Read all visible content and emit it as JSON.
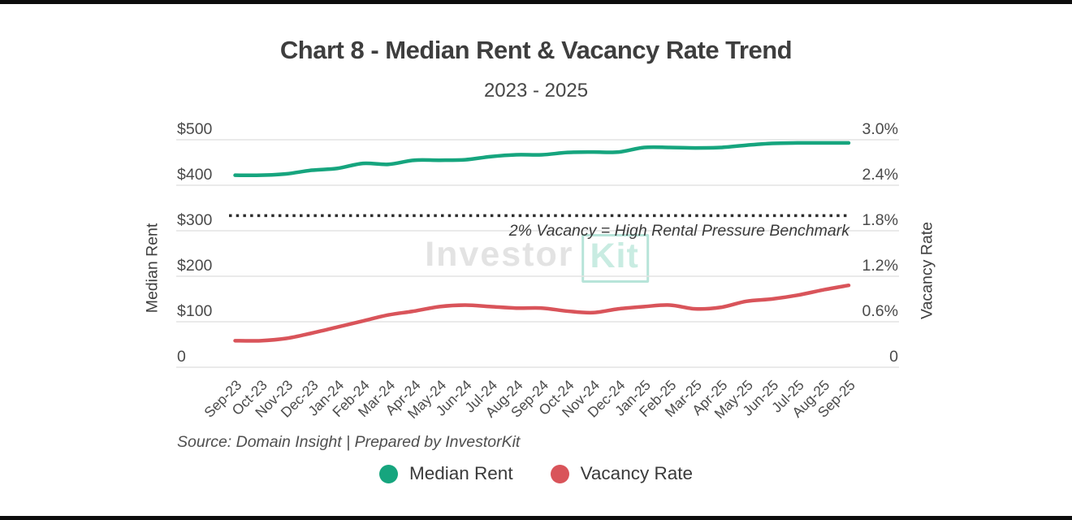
{
  "source_note": "Source: Domain Insight | Prepared by InvestorKit",
  "watermark": {
    "text_primary": "Investor",
    "text_accent": "Kit"
  },
  "chart_data": {
    "type": "line",
    "title": "Chart 8 - Median Rent & Vacancy Rate Trend",
    "subtitle": "2023 - 2025",
    "categories": [
      "Sep-23",
      "Oct-23",
      "Nov-23",
      "Dec-23",
      "Jan-24",
      "Feb-24",
      "Mar-24",
      "Apr-24",
      "May-24",
      "Jun-24",
      "Jul-24",
      "Aug-24",
      "Sep-24",
      "Oct-24",
      "Nov-24",
      "Dec-24",
      "Jan-25",
      "Feb-25",
      "Mar-25",
      "Apr-25",
      "May-25",
      "Jun-25",
      "Jul-25",
      "Aug-25",
      "Sep-25"
    ],
    "series": [
      {
        "name": "Median Rent",
        "yaxis": "left",
        "color": "#16a57e",
        "values": [
          422,
          422,
          425,
          433,
          437,
          448,
          446,
          455,
          455,
          456,
          463,
          467,
          467,
          472,
          473,
          473,
          483,
          483,
          482,
          483,
          488,
          492,
          493,
          493,
          493
        ]
      },
      {
        "name": "Vacancy Rate",
        "yaxis": "right",
        "color": "#d9545a",
        "values": [
          0.35,
          0.35,
          0.38,
          0.45,
          0.53,
          0.61,
          0.69,
          0.74,
          0.8,
          0.82,
          0.8,
          0.78,
          0.78,
          0.74,
          0.72,
          0.77,
          0.8,
          0.82,
          0.77,
          0.79,
          0.87,
          0.9,
          0.95,
          1.02,
          1.08
        ]
      }
    ],
    "left_axis": {
      "title": "Median Rent",
      "min": 0,
      "max": 500,
      "tick_labels_bottom_to_top": [
        "0",
        "$100",
        "$200",
        "$300",
        "$400",
        "$500"
      ]
    },
    "right_axis": {
      "title": "Vacancy Rate",
      "min": 0,
      "max": 3.0,
      "tick_labels_bottom_to_top": [
        "0",
        "0.6%",
        "1.2%",
        "1.8%",
        "2.4%",
        "3.0%"
      ]
    },
    "benchmark_line": {
      "value_pct": 2.0,
      "axis": "right",
      "style": "dotted",
      "color": "#2e2e2e",
      "label": "2% Vacancy = High Rental Pressure Benchmark"
    },
    "grid": true,
    "legend_position": "bottom",
    "colors": {
      "grid_line": "#e3e3e3",
      "axis_text": "#4a4a4a",
      "title_text": "#3e3e3e"
    }
  }
}
